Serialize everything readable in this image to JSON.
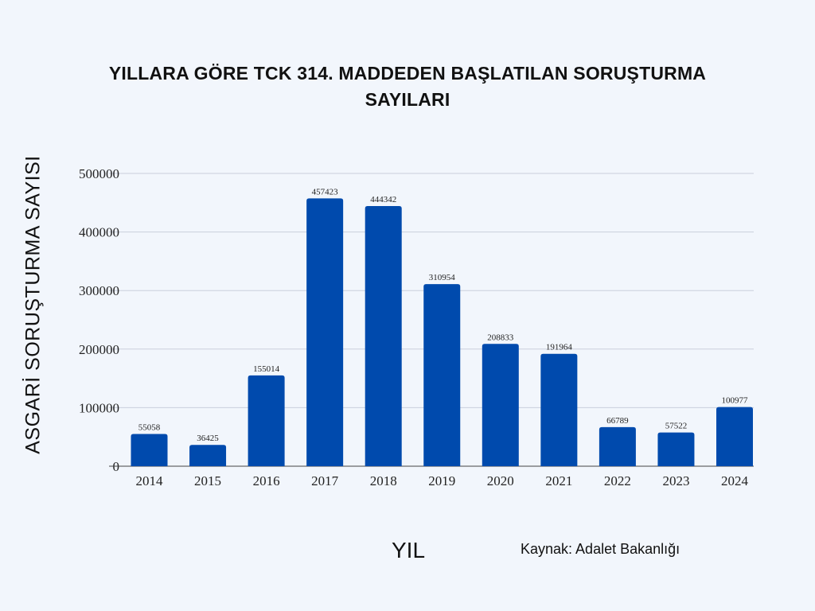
{
  "title": "YILLARA GÖRE TCK 314. MADDEDEN BAŞLATILAN SORUŞTURMA SAYILARI",
  "source": "Kaynak: Adalet Bakanlığı",
  "colors": {
    "bar": "#004aad",
    "grid": "#c9cfdc",
    "background": "#f2f6fc"
  },
  "chart_data": {
    "type": "bar",
    "title": "YILLARA GÖRE TCK 314. MADDEDEN BAŞLATILAN SORUŞTURMA SAYILARI",
    "xlabel": "YIL",
    "ylabel": "ASGARİ SORUŞTURMA SAYISI",
    "categories": [
      "2014",
      "2015",
      "2016",
      "2017",
      "2018",
      "2019",
      "2020",
      "2021",
      "2022",
      "2023",
      "2024"
    ],
    "values": [
      55058,
      36425,
      155014,
      457423,
      444342,
      310954,
      208833,
      191964,
      66789,
      57522,
      100977
    ],
    "ylim": [
      0,
      500000
    ],
    "yticks": [
      0,
      100000,
      200000,
      300000,
      400000,
      500000
    ],
    "grid": true,
    "data_labels": true
  }
}
